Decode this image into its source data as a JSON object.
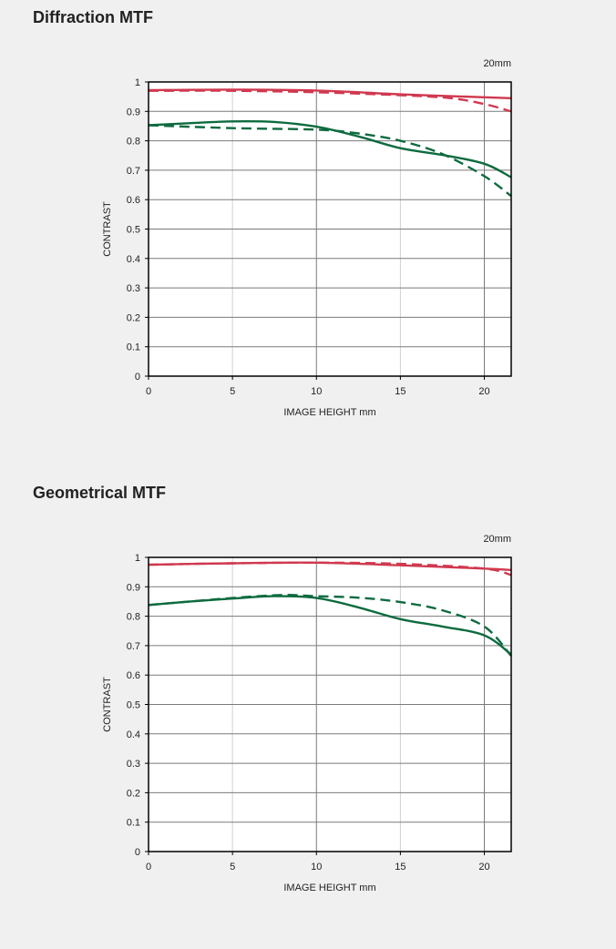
{
  "colors": {
    "background": "#f0f0f0",
    "sagittal_red": "#d0394f",
    "meridional_green": "#0d6b3f",
    "grid_major": "#7a7a7a",
    "grid_minor": "#d0d0d0",
    "axis": "#000000"
  },
  "chart_data": [
    {
      "type": "line",
      "title": "Diffraction MTF",
      "annotation": "20mm",
      "xlabel": "IMAGE HEIGHT   mm",
      "ylabel": "CONTRAST",
      "xlim": [
        0,
        21.6
      ],
      "ylim": [
        0,
        1
      ],
      "xticks": [
        0,
        5,
        10,
        15,
        20
      ],
      "yticks": [
        0,
        0.1,
        0.2,
        0.3,
        0.4,
        0.5,
        0.6,
        0.7,
        0.8,
        0.9,
        1
      ],
      "xtick_labels": [
        "0",
        "5",
        "10",
        "15",
        "20"
      ],
      "ytick_labels": [
        "0",
        "0.1",
        "0.2",
        "0.3",
        "0.4",
        "0.5",
        "0.6",
        "0.7",
        "0.8",
        "0.9",
        "1"
      ],
      "grid": true,
      "series": [
        {
          "style": "solid",
          "color": "#d0394f",
          "x": [
            0,
            5,
            10,
            15,
            20,
            21.6
          ],
          "y": [
            0.972,
            0.974,
            0.971,
            0.958,
            0.948,
            0.945
          ]
        },
        {
          "style": "dashed",
          "color": "#d0394f",
          "x": [
            0,
            5,
            10,
            15,
            18,
            20,
            21.6
          ],
          "y": [
            0.97,
            0.97,
            0.965,
            0.955,
            0.945,
            0.925,
            0.9
          ]
        },
        {
          "style": "solid",
          "color": "#0d6b3f",
          "x": [
            0,
            2.5,
            5,
            7.5,
            10,
            12.5,
            15,
            17.5,
            20,
            21.6
          ],
          "y": [
            0.853,
            0.86,
            0.866,
            0.864,
            0.848,
            0.815,
            0.775,
            0.752,
            0.722,
            0.676
          ]
        },
        {
          "style": "dashed",
          "color": "#0d6b3f",
          "x": [
            0,
            5,
            10,
            12.5,
            15,
            17.5,
            20,
            21.6
          ],
          "y": [
            0.853,
            0.843,
            0.838,
            0.825,
            0.8,
            0.755,
            0.68,
            0.612
          ]
        }
      ]
    },
    {
      "type": "line",
      "title": "Geometrical MTF",
      "annotation": "20mm",
      "xlabel": "IMAGE HEIGHT   mm",
      "ylabel": "CONTRAST",
      "xlim": [
        0,
        21.6
      ],
      "ylim": [
        0,
        1
      ],
      "xticks": [
        0,
        5,
        10,
        15,
        20
      ],
      "yticks": [
        0,
        0.1,
        0.2,
        0.3,
        0.4,
        0.5,
        0.6,
        0.7,
        0.8,
        0.9,
        1
      ],
      "xtick_labels": [
        "0",
        "5",
        "10",
        "15",
        "20"
      ],
      "ytick_labels": [
        "0",
        "0.1",
        "0.2",
        "0.3",
        "0.4",
        "0.5",
        "0.6",
        "0.7",
        "0.8",
        "0.9",
        "1"
      ],
      "grid": true,
      "series": [
        {
          "style": "solid",
          "color": "#d0394f",
          "x": [
            0,
            5,
            10,
            15,
            20,
            21.6
          ],
          "y": [
            0.975,
            0.98,
            0.982,
            0.973,
            0.962,
            0.957
          ]
        },
        {
          "style": "dashed",
          "color": "#d0394f",
          "x": [
            0,
            5,
            10,
            15,
            20,
            21.6
          ],
          "y": [
            0.975,
            0.98,
            0.982,
            0.978,
            0.962,
            0.94
          ]
        },
        {
          "style": "solid",
          "color": "#0d6b3f",
          "x": [
            0,
            2.5,
            5,
            7.5,
            10,
            12.5,
            15,
            17.5,
            20,
            21.6
          ],
          "y": [
            0.838,
            0.85,
            0.86,
            0.868,
            0.862,
            0.83,
            0.79,
            0.765,
            0.735,
            0.67
          ]
        },
        {
          "style": "dashed",
          "color": "#0d6b3f",
          "x": [
            0,
            5,
            8,
            10,
            12.5,
            15,
            17.5,
            20,
            21.6
          ],
          "y": [
            0.838,
            0.862,
            0.872,
            0.868,
            0.863,
            0.848,
            0.82,
            0.765,
            0.665
          ]
        }
      ]
    }
  ]
}
